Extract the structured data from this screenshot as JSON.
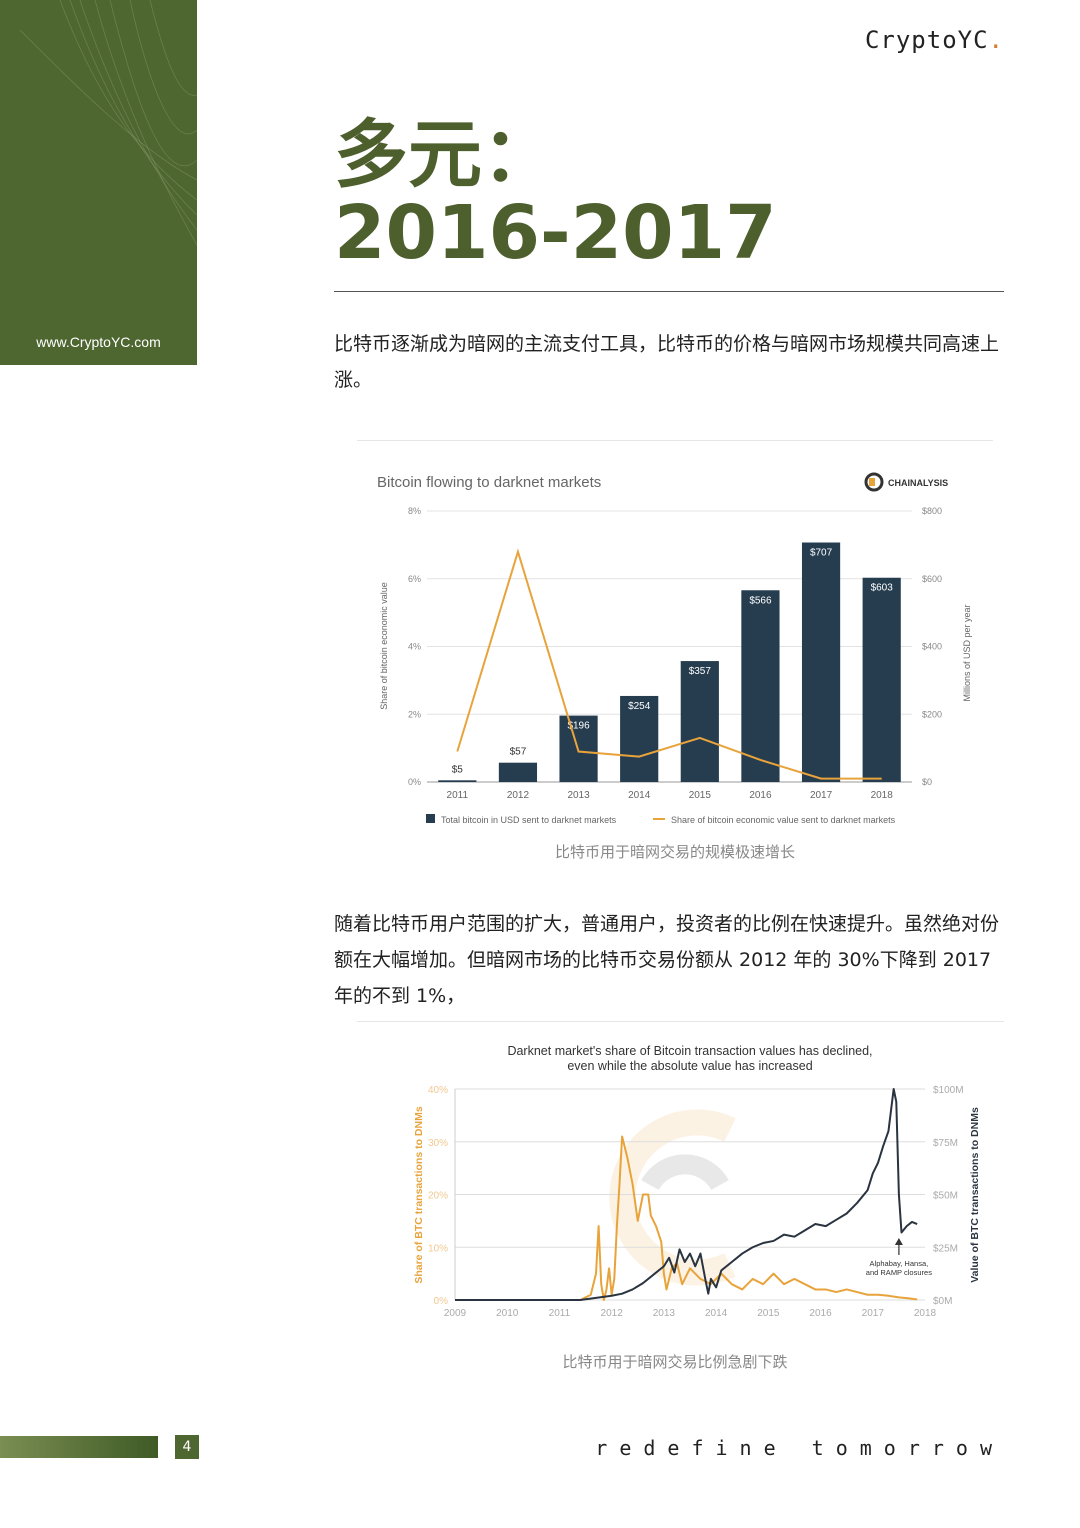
{
  "sidebar": {
    "url": "www.CryptoYC.com",
    "color": "#4e6630"
  },
  "header": {
    "brand": "CryptoYC",
    "brand_dot": "."
  },
  "title": {
    "line1": "多元：",
    "line2": "2016-2017"
  },
  "intro": "比特币逐渐成为暗网的主流支付工具，比特币的价格与暗网市场规模共同高速上涨。",
  "chart1": {
    "caption": "比特币用于暗网交易的规模极速增长",
    "logo_text": "CHAINALYSIS"
  },
  "body2": "随着比特币用户范围的扩大，普通用户，投资者的比例在快速提升。虽然绝对份额在大幅增加。但暗网市场的比特币交易份额从 2012 年的 30%下降到 2017 年的不到 1%，",
  "chart2": {
    "caption": "比特币用于暗网交易比例急剧下跌"
  },
  "footer": {
    "page": "4",
    "tagline": "redefine tomorrow"
  },
  "chart_data": [
    {
      "type": "bar",
      "title": "Bitcoin flowing to darknet markets",
      "categories": [
        "2011",
        "2012",
        "2013",
        "2014",
        "2015",
        "2016",
        "2017",
        "2018"
      ],
      "series": [
        {
          "name": "Total bitcoin in USD sent to darknet markets",
          "axis": "right",
          "values": [
            5,
            57,
            196,
            254,
            357,
            566,
            707,
            603
          ],
          "labels": [
            "$5",
            "$57",
            "$196",
            "$254",
            "$357",
            "$566",
            "$707",
            "$603"
          ],
          "color": "#263d50"
        },
        {
          "name": "Share of bitcoin economic value sent to darknet markets",
          "axis": "left",
          "type": "line",
          "values": [
            0.9,
            6.8,
            0.9,
            0.75,
            1.3,
            0.65,
            0.1,
            0.1
          ],
          "color": "#e8a33b"
        }
      ],
      "ylabel_left": "Share of bitcoin economic value",
      "ylabel_right": "Millions of USD per year",
      "ylim_left": [
        0,
        8
      ],
      "ylim_right": [
        0,
        800
      ],
      "yticks_left": [
        "0%",
        "2%",
        "4%",
        "6%",
        "8%"
      ],
      "yticks_right": [
        "$0",
        "$200",
        "$400",
        "$600",
        "$800"
      ],
      "legend_position": "bottom"
    },
    {
      "type": "line",
      "title": "Darknet market's share of Bitcoin transaction values has declined,",
      "subtitle": "even while the absolute value has increased",
      "x": [
        "2009",
        "2010",
        "2011",
        "2012",
        "2013",
        "2014",
        "2015",
        "2016",
        "2017",
        "2018"
      ],
      "xlim": [
        2009,
        2018
      ],
      "ylabel_left": "Share of BTC transactions to DNMs",
      "ylabel_right": "Value of BTC transactions to DNMs",
      "yticks_left": [
        "0%",
        "10%",
        "20%",
        "30%",
        "40%"
      ],
      "yticks_right": [
        "$0M",
        "$25M",
        "$50M",
        "$75M",
        "$100M"
      ],
      "ylim_left": [
        0,
        40
      ],
      "ylim_right": [
        0,
        100
      ],
      "annotation": {
        "lines": [
          "Alphabay, Hansa,",
          "and RAMP closures"
        ],
        "x": 2017.5
      },
      "series": [
        {
          "name": "Share of BTC transactions to DNMs",
          "axis": "left",
          "color": "#e8a33b",
          "points": [
            [
              2011.4,
              0
            ],
            [
              2011.6,
              1
            ],
            [
              2011.7,
              5
            ],
            [
              2011.75,
              14
            ],
            [
              2011.8,
              3
            ],
            [
              2011.85,
              0
            ],
            [
              2011.9,
              2
            ],
            [
              2011.95,
              6
            ],
            [
              2012.0,
              1
            ],
            [
              2012.05,
              4
            ],
            [
              2012.1,
              14
            ],
            [
              2012.15,
              22
            ],
            [
              2012.2,
              31
            ],
            [
              2012.3,
              27
            ],
            [
              2012.4,
              22
            ],
            [
              2012.5,
              15
            ],
            [
              2012.6,
              20
            ],
            [
              2012.7,
              20
            ],
            [
              2012.75,
              16
            ],
            [
              2012.85,
              14
            ],
            [
              2012.95,
              11
            ],
            [
              2013.0,
              5
            ],
            [
              2013.05,
              2
            ],
            [
              2013.15,
              6
            ],
            [
              2013.25,
              7
            ],
            [
              2013.35,
              3
            ],
            [
              2013.5,
              6
            ],
            [
              2013.7,
              4
            ],
            [
              2013.9,
              3
            ],
            [
              2014.1,
              5
            ],
            [
              2014.3,
              3
            ],
            [
              2014.5,
              2
            ],
            [
              2014.7,
              4
            ],
            [
              2014.9,
              3
            ],
            [
              2015.1,
              5
            ],
            [
              2015.3,
              3
            ],
            [
              2015.5,
              4
            ],
            [
              2015.7,
              3
            ],
            [
              2015.9,
              2
            ],
            [
              2016.1,
              2
            ],
            [
              2016.3,
              1.5
            ],
            [
              2016.5,
              2
            ],
            [
              2016.7,
              1.5
            ],
            [
              2016.9,
              1
            ],
            [
              2017.1,
              1
            ],
            [
              2017.3,
              0.8
            ],
            [
              2017.5,
              0.5
            ],
            [
              2017.7,
              0.3
            ],
            [
              2017.85,
              0.1
            ]
          ]
        },
        {
          "name": "Value of BTC transactions to DNMs",
          "axis": "right",
          "color": "#2a3440",
          "points": [
            [
              2009.0,
              0
            ],
            [
              2011.0,
              0
            ],
            [
              2011.4,
              0
            ],
            [
              2011.7,
              1
            ],
            [
              2012.0,
              2
            ],
            [
              2012.2,
              3
            ],
            [
              2012.4,
              5
            ],
            [
              2012.6,
              8
            ],
            [
              2012.8,
              12
            ],
            [
              2013.0,
              16
            ],
            [
              2013.1,
              20
            ],
            [
              2013.2,
              13
            ],
            [
              2013.3,
              24
            ],
            [
              2013.4,
              18
            ],
            [
              2013.5,
              22
            ],
            [
              2013.6,
              16
            ],
            [
              2013.7,
              22
            ],
            [
              2013.8,
              9
            ],
            [
              2013.85,
              3
            ],
            [
              2013.9,
              10
            ],
            [
              2014.0,
              6
            ],
            [
              2014.1,
              14
            ],
            [
              2014.3,
              18
            ],
            [
              2014.5,
              22
            ],
            [
              2014.7,
              25
            ],
            [
              2014.9,
              27
            ],
            [
              2015.1,
              28
            ],
            [
              2015.3,
              31
            ],
            [
              2015.5,
              30
            ],
            [
              2015.7,
              33
            ],
            [
              2015.9,
              36
            ],
            [
              2016.1,
              35
            ],
            [
              2016.3,
              38
            ],
            [
              2016.5,
              41
            ],
            [
              2016.7,
              46
            ],
            [
              2016.9,
              52
            ],
            [
              2017.0,
              60
            ],
            [
              2017.1,
              65
            ],
            [
              2017.2,
              73
            ],
            [
              2017.3,
              80
            ],
            [
              2017.35,
              90
            ],
            [
              2017.4,
              100
            ],
            [
              2017.45,
              94
            ],
            [
              2017.5,
              50
            ],
            [
              2017.55,
              32
            ],
            [
              2017.65,
              35
            ],
            [
              2017.75,
              37
            ],
            [
              2017.85,
              36
            ]
          ]
        }
      ]
    }
  ]
}
